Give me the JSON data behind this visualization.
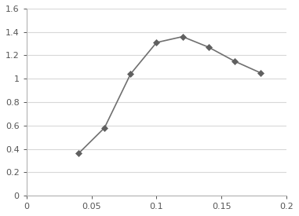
{
  "x": [
    0.04,
    0.06,
    0.08,
    0.1,
    0.12,
    0.14,
    0.16,
    0.18
  ],
  "y": [
    0.36,
    0.58,
    1.04,
    1.31,
    1.36,
    1.27,
    1.15,
    1.05
  ],
  "xlim": [
    0,
    0.2
  ],
  "ylim": [
    0,
    1.6
  ],
  "xticks": [
    0,
    0.05,
    0.1,
    0.15,
    0.2
  ],
  "xtick_labels": [
    "0",
    "0.05",
    "0.1",
    "0.15",
    "0.2"
  ],
  "yticks": [
    0,
    0.2,
    0.4,
    0.6,
    0.8,
    1.0,
    1.2,
    1.4,
    1.6
  ],
  "ytick_labels": [
    "0",
    "0.2",
    "0.4",
    "0.6",
    "0.8",
    "1",
    "1.2",
    "1.4",
    "1.6"
  ],
  "line_color": "#707070",
  "marker": "D",
  "marker_color": "#606060",
  "marker_size": 4,
  "line_width": 1.2,
  "background_color": "#ffffff",
  "plot_bg_color": "#ffffff",
  "grid_color": "#d8d8d8",
  "grid_linewidth": 0.8,
  "spine_color": "#aaaaaa",
  "tick_label_color": "#555555",
  "tick_label_size": 8
}
